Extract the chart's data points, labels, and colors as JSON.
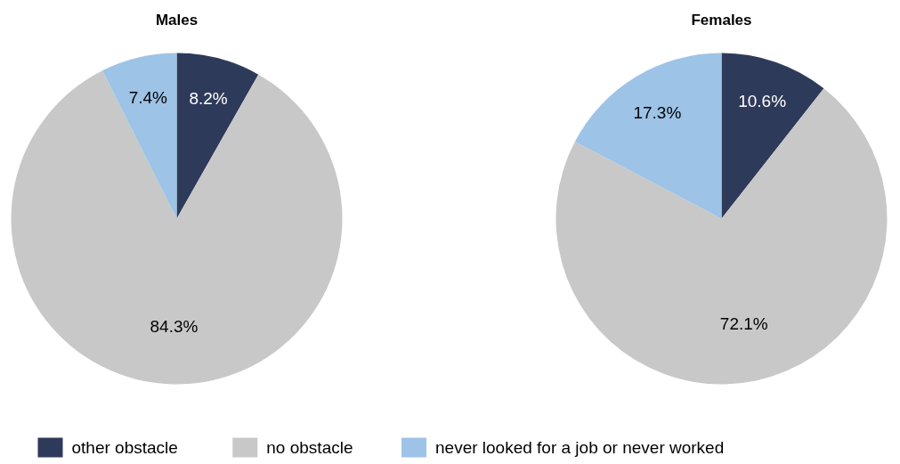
{
  "chart_data": [
    {
      "type": "pie",
      "title": "Males",
      "categories": [
        "other obstacle",
        "no obstacle",
        "never looked for a job or never worked"
      ],
      "values": [
        8.2,
        84.3,
        7.4
      ],
      "colors": [
        "#2e3a59",
        "#c8c8c8",
        "#9dc3e6"
      ],
      "value_labels": [
        "8.2%",
        "84.3%",
        "7.4%"
      ],
      "legend": "bottom"
    },
    {
      "type": "pie",
      "title": "Females",
      "categories": [
        null,
        null,
        null
      ],
      "values": [
        10.6,
        72.1,
        17.3
      ],
      "colors": [
        "#2e3a59",
        "#c8c8c8",
        "#9dc3e6"
      ],
      "value_labels": [
        "10.6%",
        "72.1%",
        "17.3%"
      ]
    }
  ]
}
